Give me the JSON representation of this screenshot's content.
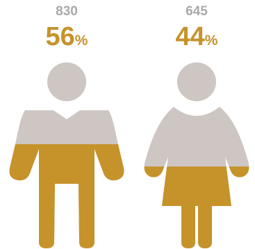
{
  "chart_data": {
    "type": "pictogram",
    "categories": [
      "male",
      "female"
    ],
    "series": [
      {
        "values": [
          830,
          645
        ]
      }
    ],
    "labels": [
      {
        "count": "830",
        "percent": "56",
        "percent_sign": "%"
      },
      {
        "count": "645",
        "percent": "44",
        "percent_sign": "%"
      }
    ],
    "fill_fraction": [
      0.56,
      0.44
    ],
    "colors": {
      "fill": "#c6922a",
      "empty": "#cdc6c2",
      "count_text": "#a9a9a9"
    }
  }
}
